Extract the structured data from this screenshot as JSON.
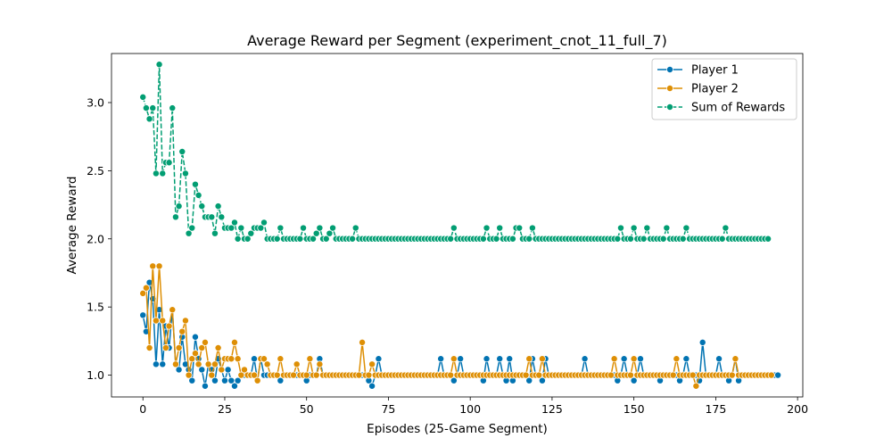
{
  "chart_data": {
    "type": "line",
    "title": "Average Reward per Segment (experiment_cnot_11_full_7)",
    "xlabel": "Episodes (25-Game Segment)",
    "ylabel": "Average Reward",
    "xlim": [
      -9.6,
      201.6
    ],
    "ylim": [
      0.84,
      3.36
    ],
    "xticks": [
      0,
      25,
      50,
      75,
      100,
      125,
      150,
      175,
      200
    ],
    "yticks": [
      1.0,
      1.5,
      2.0,
      2.5,
      3.0
    ],
    "xtick_labels": [
      "0",
      "25",
      "50",
      "75",
      "100",
      "125",
      "150",
      "175",
      "200"
    ],
    "ytick_labels": [
      "1.0",
      "1.5",
      "2.0",
      "2.5",
      "3.0"
    ],
    "grid": false,
    "legend_position": "upper right",
    "legend_entries": [
      "Player 1",
      "Player 2",
      "Sum of Rewards"
    ],
    "series": [
      {
        "name": "Player 1",
        "color": "#0173b2",
        "linestyle": "solid",
        "values": [
          1.44,
          1.32,
          1.68,
          1.56,
          1.08,
          1.48,
          1.08,
          1.36,
          1.2,
          1.48,
          1.08,
          1.04,
          1.28,
          1.08,
          1.04,
          0.96,
          1.28,
          1.12,
          1.04,
          0.92,
          1.08,
          1.04,
          0.96,
          1.12,
          1.04,
          0.96,
          1.04,
          0.96,
          0.92,
          0.96,
          1.0,
          1.0,
          1.0,
          1.0,
          1.12,
          0.96,
          1.12,
          1.0,
          1.0,
          1.0,
          1.0,
          1.0,
          0.96,
          1.0,
          1.0,
          1.0,
          1.0,
          1.0,
          1.0,
          1.0,
          0.96,
          1.0,
          1.0,
          1.0,
          1.12,
          1.0,
          1.0,
          1.0,
          1.0,
          1.0,
          1.0,
          1.0,
          1.0,
          1.0,
          1.0,
          1.0,
          1.0,
          1.0,
          1.0,
          0.96,
          0.92,
          1.0,
          1.12,
          1.0,
          1.0,
          1.0,
          1.0,
          1.0,
          1.0,
          1.0,
          1.0,
          1.0,
          1.0,
          1.0,
          1.0,
          1.0,
          1.0,
          1.0,
          1.0,
          1.0,
          1.0,
          1.12,
          1.0,
          1.0,
          1.0,
          0.96,
          1.0,
          1.12,
          1.0,
          1.0,
          1.0,
          1.0,
          1.0,
          1.0,
          0.96,
          1.12,
          1.0,
          1.0,
          1.0,
          1.12,
          1.0,
          0.96,
          1.12,
          0.96,
          1.0,
          1.0,
          1.0,
          1.0,
          0.96,
          1.12,
          1.0,
          1.0,
          0.96,
          1.12,
          1.0,
          1.0,
          1.0,
          1.0,
          1.0,
          1.0,
          1.0,
          1.0,
          1.0,
          1.0,
          1.0,
          1.12,
          1.0,
          1.0,
          1.0,
          1.0,
          1.0,
          1.0,
          1.0,
          1.0,
          1.0,
          0.96,
          1.0,
          1.12,
          1.0,
          1.0,
          0.96,
          1.0,
          1.12,
          1.0,
          1.0,
          1.0,
          1.0,
          1.0,
          0.96,
          1.0,
          1.0,
          1.0,
          1.0,
          1.0,
          0.96,
          1.0,
          1.12,
          1.0,
          1.0,
          1.0,
          0.96,
          1.24,
          1.0,
          1.0,
          1.0,
          1.0,
          1.12,
          1.0,
          1.0,
          0.96,
          1.0,
          1.12,
          0.96,
          1.0,
          1.0,
          1.0,
          1.0,
          1.0,
          1.0,
          1.0,
          1.0,
          1.0,
          1.0,
          1.0,
          1.0
        ]
      },
      {
        "name": "Player 2",
        "color": "#de8f05",
        "linestyle": "solid",
        "values": [
          1.6,
          1.64,
          1.2,
          1.8,
          1.4,
          1.8,
          1.4,
          1.2,
          1.36,
          1.48,
          1.08,
          1.2,
          1.32,
          1.4,
          1.0,
          1.12,
          1.16,
          1.08,
          1.2,
          1.24,
          1.08,
          1.0,
          1.08,
          1.2,
          1.04,
          1.12,
          1.12,
          1.12,
          1.24,
          1.12,
          1.0,
          1.04,
          1.0,
          1.0,
          1.0,
          0.96,
          1.12,
          1.12,
          1.08,
          1.0,
          1.0,
          1.0,
          1.12,
          1.0,
          1.0,
          1.0,
          1.0,
          1.08,
          1.0,
          1.0,
          1.0,
          1.12,
          1.0,
          1.0,
          1.08,
          1.0,
          1.0,
          1.0,
          1.0,
          1.0,
          1.0,
          1.0,
          1.0,
          1.0,
          1.0,
          1.0,
          1.0,
          1.24,
          1.0,
          1.0,
          1.08,
          1.0,
          1.0,
          1.0,
          1.0,
          1.0,
          1.0,
          1.0,
          1.0,
          1.0,
          1.0,
          1.0,
          1.0,
          1.0,
          1.0,
          1.0,
          1.0,
          1.0,
          1.0,
          1.0,
          1.0,
          1.0,
          1.0,
          1.0,
          1.0,
          1.12,
          1.0,
          1.0,
          1.0,
          1.0,
          1.0,
          1.0,
          1.0,
          1.0,
          1.0,
          1.0,
          1.0,
          1.0,
          1.0,
          1.0,
          1.0,
          1.0,
          1.0,
          1.0,
          1.0,
          1.0,
          1.0,
          1.0,
          1.12,
          1.0,
          1.0,
          1.0,
          1.12,
          1.0,
          1.0,
          1.0,
          1.0,
          1.0,
          1.0,
          1.0,
          1.0,
          1.0,
          1.0,
          1.0,
          1.0,
          1.0,
          1.0,
          1.0,
          1.0,
          1.0,
          1.0,
          1.0,
          1.0,
          1.0,
          1.12,
          1.0,
          1.0,
          1.0,
          1.0,
          1.0,
          1.12,
          1.0,
          1.0,
          1.0,
          1.0,
          1.0,
          1.0,
          1.0,
          1.0,
          1.0,
          1.0,
          1.0,
          1.0,
          1.12,
          1.0,
          1.0,
          1.0,
          1.0,
          1.0,
          0.92,
          1.0,
          1.0,
          1.0,
          1.0,
          1.0,
          1.0,
          1.0,
          1.0,
          1.0,
          1.0,
          1.0,
          1.12,
          1.0,
          1.0,
          1.0,
          1.0,
          1.0,
          1.0,
          1.0,
          1.0,
          1.0,
          1.0,
          1.0
        ]
      },
      {
        "name": "Sum of Rewards",
        "color": "#029e73",
        "linestyle": "dashed",
        "values": [
          3.04,
          2.96,
          2.88,
          2.96,
          2.48,
          3.28,
          2.48,
          2.56,
          2.56,
          2.96,
          2.16,
          2.24,
          2.64,
          2.48,
          2.04,
          2.08,
          2.4,
          2.32,
          2.24,
          2.16,
          2.16,
          2.16,
          2.04,
          2.24,
          2.16,
          2.08,
          2.08,
          2.08,
          2.12,
          2.0,
          2.08,
          2.0,
          2.0,
          2.04,
          2.08,
          2.08,
          2.08,
          2.12,
          2.0,
          2.0,
          2.0,
          2.0,
          2.08,
          2.0,
          2.0,
          2.0,
          2.0,
          2.0,
          2.0,
          2.08,
          2.0,
          2.0,
          2.0,
          2.04,
          2.08,
          2.0,
          2.0,
          2.04,
          2.08,
          2.0,
          2.0,
          2.0,
          2.0,
          2.0,
          2.0,
          2.08,
          2.0,
          2.0,
          2.0,
          2.0,
          2.0,
          2.0,
          2.0,
          2.0,
          2.0,
          2.0,
          2.0,
          2.0,
          2.0,
          2.0,
          2.0,
          2.0,
          2.0,
          2.0,
          2.0,
          2.0,
          2.0,
          2.0,
          2.0,
          2.0,
          2.0,
          2.0,
          2.0,
          2.0,
          2.0,
          2.08,
          2.0,
          2.0,
          2.0,
          2.0,
          2.0,
          2.0,
          2.0,
          2.0,
          2.0,
          2.08,
          2.0,
          2.0,
          2.0,
          2.08,
          2.0,
          2.0,
          2.0,
          2.0,
          2.08,
          2.08,
          2.0,
          2.0,
          2.0,
          2.08,
          2.0,
          2.0,
          2.0,
          2.0,
          2.0,
          2.0,
          2.0,
          2.0,
          2.0,
          2.0,
          2.0,
          2.0,
          2.0,
          2.0,
          2.0,
          2.0,
          2.0,
          2.0,
          2.0,
          2.0,
          2.0,
          2.0,
          2.0,
          2.0,
          2.0,
          2.0,
          2.08,
          2.0,
          2.0,
          2.0,
          2.08,
          2.0,
          2.0,
          2.0,
          2.08,
          2.0,
          2.0,
          2.0,
          2.0,
          2.0,
          2.08,
          2.0,
          2.0,
          2.0,
          2.0,
          2.0,
          2.08,
          2.0,
          2.0,
          2.0,
          2.0,
          2.0,
          2.0,
          2.0,
          2.0,
          2.0,
          2.0,
          2.0,
          2.08,
          2.0,
          2.0,
          2.0,
          2.0,
          2.0,
          2.0,
          2.0,
          2.0,
          2.0,
          2.0,
          2.0,
          2.0,
          2.0
        ]
      }
    ]
  }
}
